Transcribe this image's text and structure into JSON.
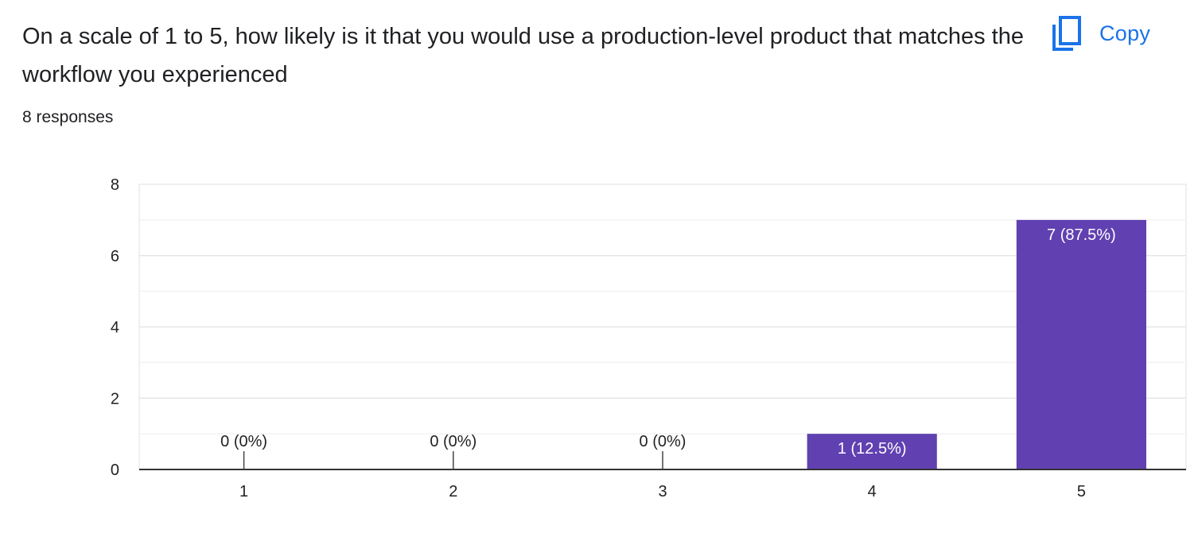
{
  "question": {
    "title": "On a scale of 1 to 5, how likely is it that you would use a production-level product that matches the workflow you experienced",
    "responses_text": "8 responses"
  },
  "toolbar": {
    "copy_label": "Copy",
    "copy_icon": "copy-icon"
  },
  "colors": {
    "bar": "#6140b1",
    "accent": "#1a73e8",
    "grid": "#ebebeb",
    "axis": "#333333"
  },
  "chart_data": {
    "type": "bar",
    "categories": [
      "1",
      "2",
      "3",
      "4",
      "5"
    ],
    "values": [
      0,
      0,
      0,
      1,
      7
    ],
    "data_labels": [
      "0 (0%)",
      "0 (0%)",
      "0 (0%)",
      "1 (12.5%)",
      "7 (87.5%)"
    ],
    "y_ticks": [
      "0",
      "2",
      "4",
      "6",
      "8"
    ],
    "ylim": [
      0,
      8
    ],
    "grid": true,
    "legend": "none",
    "title": "",
    "xlabel": "",
    "ylabel": ""
  }
}
